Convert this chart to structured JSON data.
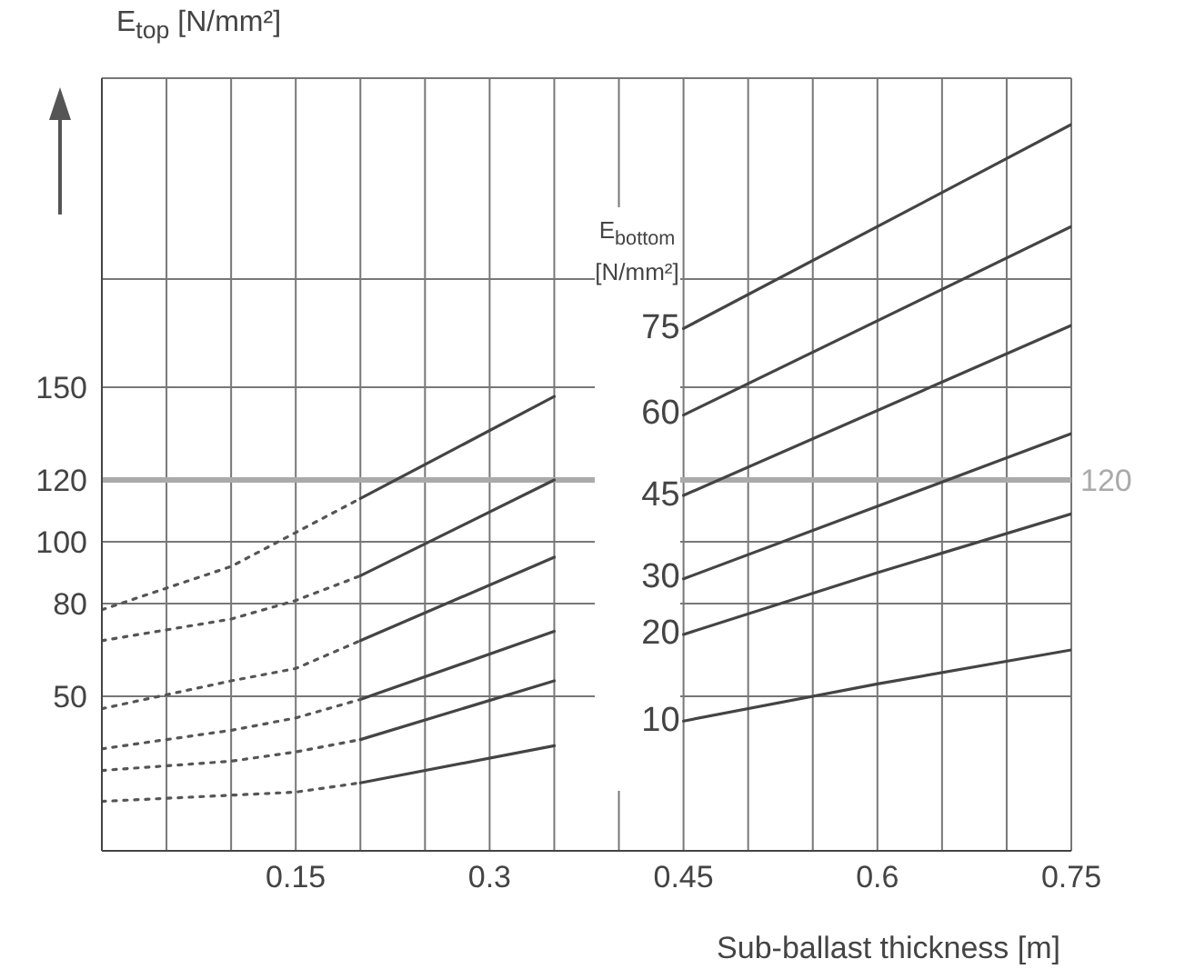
{
  "chart_data": {
    "type": "line",
    "xlabel": "Sub-ballast thickness [m]",
    "ylabel": "E$_{top}$ [N/mm²]",
    "legend_title": "E$_{bottom}$ [N/mm²]",
    "xlim": [
      0,
      0.75
    ],
    "xticks": [
      {
        "value": 0,
        "label": null
      },
      {
        "value": 0.05,
        "label": null
      },
      {
        "value": 0.1,
        "label": null
      },
      0.15,
      {
        "value": 0.2,
        "label": null
      },
      {
        "value": 0.25,
        "label": null
      },
      0.3,
      {
        "value": 0.35,
        "label": null
      },
      {
        "value": 0.4,
        "label": null
      },
      0.45,
      {
        "value": 0.5,
        "label": null
      },
      {
        "value": 0.55,
        "label": null
      },
      0.6,
      {
        "value": 0.65,
        "label": null
      },
      {
        "value": 0.7,
        "label": null
      },
      0.75
    ],
    "ylim": [
      0,
      250
    ],
    "yticks": [
      50,
      80,
      100,
      120,
      150,
      {
        "value": 185,
        "label": null
      },
      {
        "value": 250,
        "label": null
      }
    ],
    "grid": true,
    "ref_lines": [
      {
        "axis": "y",
        "value": 120,
        "label": "120",
        "color": "#aaaaaa"
      }
    ],
    "series": [
      {
        "name": "75",
        "color": "#444444",
        "x": [
          0.2,
          0.35,
          0.4,
          0.45,
          0.75
        ],
        "values": [
          114,
          147,
          null,
          169,
          235
        ]
      },
      {
        "name": "60",
        "color": "#444444",
        "x": [
          0.2,
          0.35,
          0.4,
          0.45,
          0.75
        ],
        "values": [
          89,
          120,
          null,
          141,
          202
        ]
      },
      {
        "name": "45",
        "color": "#444444",
        "x": [
          0.2,
          0.35,
          0.4,
          0.45,
          0.75
        ],
        "values": [
          68,
          95,
          null,
          115,
          170
        ]
      },
      {
        "name": "30",
        "color": "#444444",
        "x": [
          0.2,
          0.35,
          0.4,
          0.45,
          0.75
        ],
        "values": [
          49,
          71,
          null,
          88,
          135
        ]
      },
      {
        "name": "20",
        "color": "#444444",
        "x": [
          0.2,
          0.35,
          0.4,
          0.45,
          0.6,
          0.75
        ],
        "values": [
          36,
          55,
          null,
          70,
          90,
          109
        ]
      },
      {
        "name": "10",
        "color": "#444444",
        "x": [
          0.2,
          0.35,
          0.4,
          0.45,
          0.6,
          0.75
        ],
        "values": [
          22,
          34,
          null,
          42,
          54,
          65
        ]
      },
      {
        "color": "#555555",
        "line_style": "dotted",
        "x": [
          0,
          0.1,
          0.15,
          0.2
        ],
        "values": [
          78,
          92,
          103,
          114
        ]
      },
      {
        "color": "#555555",
        "line_style": "dotted",
        "x": [
          0,
          0.1,
          0.15,
          0.2
        ],
        "values": [
          68,
          75,
          81,
          89
        ]
      },
      {
        "color": "#555555",
        "line_style": "dotted",
        "x": [
          0,
          0.1,
          0.15,
          0.2
        ],
        "values": [
          46,
          55,
          59,
          68
        ]
      },
      {
        "color": "#555555",
        "line_style": "dotted",
        "x": [
          0,
          0.1,
          0.15,
          0.2
        ],
        "values": [
          33,
          39,
          43,
          49
        ]
      },
      {
        "color": "#555555",
        "line_style": "dotted",
        "x": [
          0,
          0.1,
          0.15,
          0.2
        ],
        "values": [
          26,
          29,
          32,
          36
        ]
      },
      {
        "color": "#555555",
        "line_style": "dotted",
        "x": [
          0,
          0.1,
          0.15,
          0.2
        ],
        "values": [
          16,
          18,
          19,
          22
        ]
      }
    ]
  }
}
